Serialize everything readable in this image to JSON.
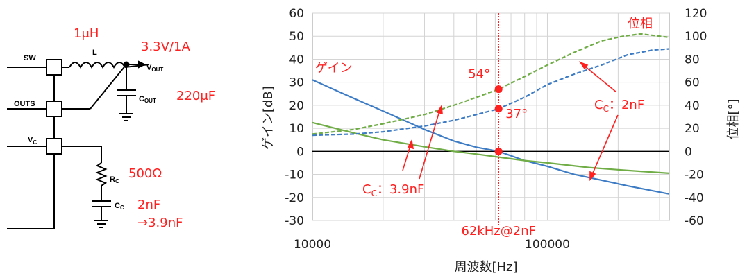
{
  "schematic": {
    "pins": {
      "sw": "SW",
      "outs": "OUTS",
      "vc": "V",
      "vc_sub": "C"
    },
    "labels": {
      "l": "L",
      "vout": "V",
      "vout_sub": "OUT",
      "cout": "C",
      "cout_sub": "OUT",
      "rc": "R",
      "rc_sub": "C",
      "cc": "C",
      "cc_sub": "C"
    },
    "annotations": {
      "inductor": "1μH",
      "output": "3.3V/1A",
      "cout": "220μF",
      "rc": "500Ω",
      "cc1": "2nF",
      "cc2": "→3.9nF"
    },
    "colors": {
      "annotation": "#ff2020",
      "wire": "#000000"
    }
  },
  "chart_data": {
    "type": "line",
    "x_scale": "log",
    "xlim": [
      10000,
      330000
    ],
    "ylim": [
      -30,
      60
    ],
    "y2lim": [
      -60,
      120
    ],
    "x_ticks": [
      "10000",
      "100000"
    ],
    "y_ticks": [
      "60",
      "50",
      "40",
      "30",
      "20",
      "10",
      "0",
      "-10",
      "-20",
      "-30"
    ],
    "y2_ticks": [
      "120",
      "100",
      "80",
      "60",
      "40",
      "20",
      "0",
      "-20",
      "-40",
      "-60"
    ],
    "xlabel": "周波数[Hz]",
    "ylabel": "ゲイン[dB]",
    "y2label": "位相[°]",
    "grid": true,
    "series": [
      {
        "axis": "gain",
        "color": "#3d7cc4",
        "dash": "solid",
        "x": [
          10000,
          15000,
          20000,
          30000,
          40000,
          50000,
          62000,
          80000,
          100000,
          130000,
          170000,
          220000,
          330000
        ],
        "y": [
          31,
          23,
          17.5,
          9.5,
          4.5,
          1.8,
          0,
          -4,
          -6.5,
          -10,
          -12.5,
          -15,
          -18.5
        ]
      },
      {
        "axis": "gain",
        "color": "#70ad47",
        "dash": "solid",
        "x": [
          10000,
          15000,
          20000,
          30000,
          40000,
          50000,
          62000,
          80000,
          100000,
          150000,
          220000,
          330000
        ],
        "y": [
          12.5,
          8,
          5,
          2,
          0,
          -1.2,
          -2.5,
          -4,
          -5,
          -7,
          -8.3,
          -9.5
        ]
      },
      {
        "axis": "phase",
        "color": "#3d7cc4",
        "dash": "dashed",
        "x": [
          10000,
          15000,
          20000,
          30000,
          40000,
          50000,
          62000,
          80000,
          100000,
          130000,
          170000,
          220000,
          250000,
          280000,
          330000
        ],
        "y": [
          14,
          15,
          17,
          22,
          27,
          32,
          37,
          47,
          58,
          67,
          75,
          84,
          86,
          88,
          89
        ]
      },
      {
        "axis": "phase",
        "color": "#70ad47",
        "dash": "dashed",
        "x": [
          10000,
          15000,
          20000,
          30000,
          40000,
          50000,
          62000,
          80000,
          100000,
          130000,
          170000,
          210000,
          250000,
          330000
        ],
        "y": [
          15,
          19,
          24,
          32,
          40,
          47,
          54,
          65,
          75,
          86,
          96,
          100,
          102,
          99
        ]
      }
    ],
    "vline": {
      "x": 62000,
      "label": "62kHz@2nF"
    },
    "markers": [
      {
        "axis": "phase",
        "x": 62000,
        "y": 54,
        "label": "54°"
      },
      {
        "axis": "phase",
        "x": 62000,
        "y": 37,
        "label": "37°"
      },
      {
        "axis": "gain",
        "x": 62000,
        "y": 0
      }
    ],
    "annotations": {
      "gain": "ゲイン",
      "phase": "位相",
      "cc2_main": "C",
      "cc2_sub": "C",
      "cc2_value": "：2nF",
      "cc39_main": "C",
      "cc39_sub": "C",
      "cc39_value": "：3.9nF"
    },
    "annotation_color": "#ff2020"
  }
}
